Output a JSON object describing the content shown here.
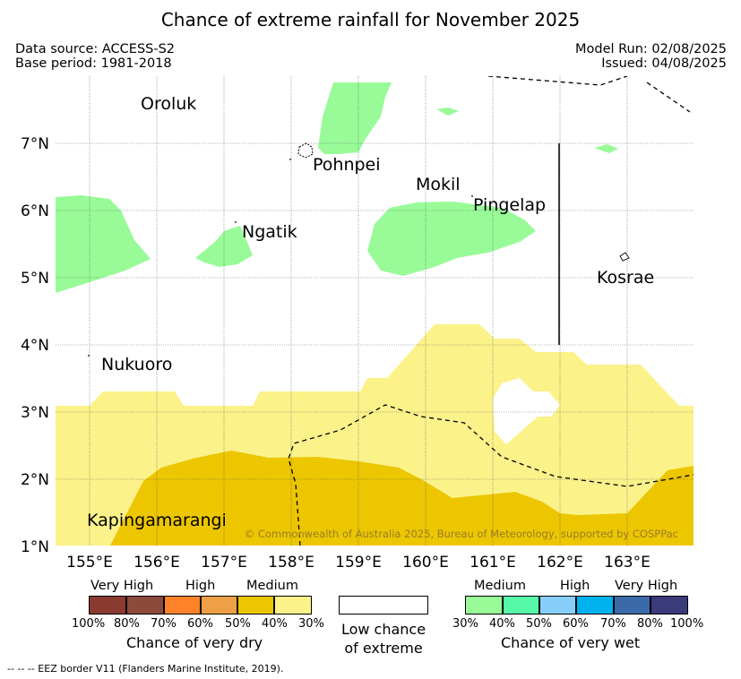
{
  "title": "Chance of extreme rainfall for November 2025",
  "meta": {
    "data_source": "Data source: ACCESS-S2",
    "base_period": "Base period: 1981-2018",
    "model_run": "Model Run: 02/08/2025",
    "issued": "Issued: 04/08/2025"
  },
  "map": {
    "lat_ticks": [
      "7°N",
      "6°N",
      "5°N",
      "4°N",
      "3°N",
      "2°N",
      "1°N"
    ],
    "lon_ticks": [
      "155°E",
      "156°E",
      "157°E",
      "158°E",
      "159°E",
      "160°E",
      "161°E",
      "162°E",
      "163°E"
    ],
    "places": [
      "Oroluk",
      "Pohnpei",
      "Mokil",
      "Pingelap",
      "Ngatik",
      "Kosrae",
      "Nukuoro",
      "Kapingamarangi"
    ],
    "copyright": "© Commonwealth of Australia 2025, Bureau of Meteorology, supported by COSPPac",
    "colors": {
      "dry_medium_light": "#fbf28a",
      "dry_medium_dark": "#ecc600",
      "wet_medium": "#98fb98"
    }
  },
  "legend": {
    "dry": {
      "categories": [
        "Very High",
        "High",
        "Medium"
      ],
      "ticks": [
        "100%",
        "80%",
        "70%",
        "60%",
        "50%",
        "40%",
        "30%"
      ],
      "title": "Chance of very dry",
      "colors": [
        "#8b3a32",
        "#8b4a3a",
        "#ff8128",
        "#eea047",
        "#ecc600",
        "#fbf28a"
      ]
    },
    "low": {
      "line1": "Low chance",
      "line2": "of extreme"
    },
    "wet": {
      "categories": [
        "Medium",
        "High",
        "Very High"
      ],
      "ticks": [
        "30%",
        "40%",
        "50%",
        "60%",
        "70%",
        "80%",
        "100%"
      ],
      "title": "Chance of very wet",
      "colors": [
        "#98fb98",
        "#55f9a8",
        "#87cefa",
        "#00b2ee",
        "#3a6aa9",
        "#3b3a7a"
      ]
    }
  },
  "footnote": "-- -- -- EEZ border V11 (Flanders Marine Institute, 2019)."
}
